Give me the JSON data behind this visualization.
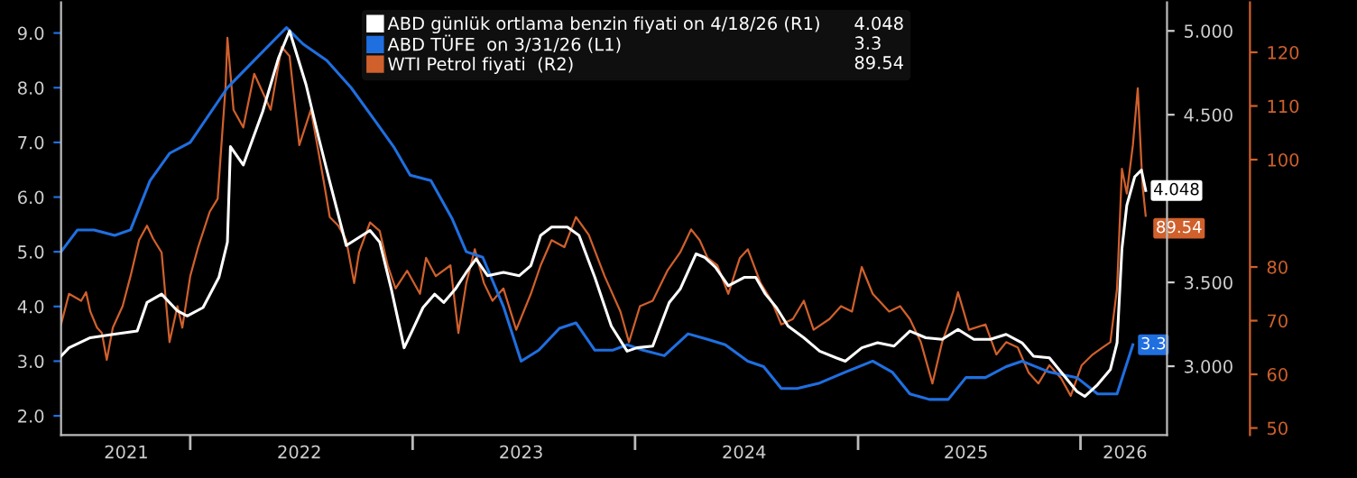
{
  "chart_data": {
    "type": "line",
    "legend": "top",
    "grid": false,
    "xlim": [
      "2021-06-03",
      "2026-05-23"
    ],
    "xticks": [
      {
        "value": "2022-01-01",
        "label": null
      },
      {
        "value": "2023-01-01",
        "label": null
      },
      {
        "value": "2024-01-01",
        "label": null
      },
      {
        "value": "2025-01-01",
        "label": null
      },
      {
        "value": "2026-01-01",
        "label": null
      },
      {
        "value": "2021-09-18",
        "label": "2021"
      },
      {
        "value": "2022-06-29",
        "label": "2022"
      },
      {
        "value": "2023-06-28",
        "label": "2023"
      },
      {
        "value": "2024-06-28",
        "label": "2024"
      },
      {
        "value": "2025-06-27",
        "label": "2025"
      },
      {
        "value": "2026-03-15",
        "label": "2026"
      }
    ],
    "ylim": [
      1.65,
      9.56
    ],
    "yticks": [
      {
        "value": 2,
        "label": "2.0"
      },
      {
        "value": 3,
        "label": "3.0"
      },
      {
        "value": 4,
        "label": "4.0"
      },
      {
        "value": 5,
        "label": "5.0"
      },
      {
        "value": 6,
        "label": "6.0"
      },
      {
        "value": 7,
        "label": "7.0"
      },
      {
        "value": 8,
        "label": "8.0"
      },
      {
        "value": 9,
        "label": "9.0"
      }
    ],
    "y2lim": [
      2.59,
      5.17
    ],
    "y2ticks": [
      {
        "value": 3,
        "label": "3.000"
      },
      {
        "value": 3.5,
        "label": "3.500"
      },
      {
        "value": 4,
        "label": null
      },
      {
        "value": 4.5,
        "label": "4.500"
      },
      {
        "value": 5,
        "label": "5.000"
      }
    ],
    "y3lim": [
      48.7,
      129.3
    ],
    "y3ticks": [
      50,
      60,
      70,
      80,
      100,
      110,
      120
    ],
    "series": [
      {
        "name": "ABD günlük ortlama benzin fiyati on 4/18/26 (R1)",
        "color": "#ffffff",
        "axis": "y2",
        "x": [
          "2021-06-03",
          "2021-06-16",
          "2021-07-21",
          "2021-08-27",
          "2021-10-06",
          "2021-10-22",
          "2021-11-15",
          "2021-12-11",
          "2021-12-27",
          "2022-01-22",
          "2022-02-17",
          "2022-03-03",
          "2022-03-08",
          "2022-03-29",
          "2022-04-30",
          "2022-05-26",
          "2022-06-13",
          "2022-07-10",
          "2022-07-31",
          "2022-08-18",
          "2022-09-14",
          "2022-10-23",
          "2022-11-08",
          "2022-11-27",
          "2022-12-18",
          "2022-12-31",
          "2023-01-18",
          "2023-02-06",
          "2023-02-21",
          "2023-03-12",
          "2023-03-30",
          "2023-04-15",
          "2023-05-04",
          "2023-05-30",
          "2023-06-25",
          "2023-07-14",
          "2023-07-30",
          "2023-08-17",
          "2023-09-12",
          "2023-10-01",
          "2023-10-27",
          "2023-11-23",
          "2023-12-19",
          "2024-01-04",
          "2024-01-30",
          "2024-02-26",
          "2024-03-15",
          "2024-04-10",
          "2024-04-24",
          "2024-05-12",
          "2024-06-02",
          "2024-06-28",
          "2024-07-17",
          "2024-08-02",
          "2024-08-20",
          "2024-09-08",
          "2024-10-04",
          "2024-10-30",
          "2024-11-26",
          "2024-12-11",
          "2025-01-07",
          "2025-02-02",
          "2025-03-01",
          "2025-03-27",
          "2025-04-22",
          "2025-05-19",
          "2025-06-14",
          "2025-07-10",
          "2025-08-06",
          "2025-09-01",
          "2025-09-27",
          "2025-10-16",
          "2025-11-11",
          "2025-12-08",
          "2025-12-26",
          "2026-01-08",
          "2026-01-29",
          "2026-02-19",
          "2026-03-02",
          "2026-03-10",
          "2026-03-18",
          "2026-03-31",
          "2026-04-11",
          "2026-04-18"
        ],
        "values": [
          3.06,
          3.11,
          3.17,
          3.19,
          3.21,
          3.38,
          3.43,
          3.33,
          3.3,
          3.35,
          3.53,
          3.74,
          4.31,
          4.2,
          4.52,
          4.84,
          5.0,
          4.68,
          4.36,
          4.1,
          3.72,
          3.81,
          3.74,
          3.46,
          3.11,
          3.21,
          3.35,
          3.43,
          3.38,
          3.46,
          3.56,
          3.64,
          3.54,
          3.56,
          3.54,
          3.6,
          3.78,
          3.83,
          3.83,
          3.78,
          3.53,
          3.24,
          3.09,
          3.11,
          3.12,
          3.38,
          3.46,
          3.67,
          3.65,
          3.59,
          3.48,
          3.53,
          3.53,
          3.43,
          3.35,
          3.24,
          3.17,
          3.09,
          3.05,
          3.03,
          3.11,
          3.14,
          3.12,
          3.21,
          3.17,
          3.16,
          3.22,
          3.16,
          3.16,
          3.19,
          3.14,
          3.06,
          3.05,
          2.93,
          2.85,
          2.82,
          2.89,
          2.98,
          3.14,
          3.7,
          3.96,
          4.13,
          4.17,
          4.048
        ],
        "value_labels": [
          null,
          null,
          null,
          null,
          null,
          null,
          null,
          null,
          null,
          null,
          null,
          null,
          null,
          null,
          null,
          null,
          null,
          null,
          null,
          null,
          null,
          null,
          null,
          null,
          null,
          null,
          null,
          null,
          null,
          null,
          null,
          null,
          null,
          null,
          null,
          null,
          null,
          null,
          null,
          null,
          null,
          null,
          null,
          null,
          null,
          null,
          null,
          null,
          null,
          null,
          null,
          null,
          null,
          null,
          null,
          null,
          null,
          null,
          null,
          null,
          null,
          null,
          null,
          null,
          null,
          null,
          null,
          null,
          null,
          null,
          null,
          null,
          null,
          null,
          null,
          null,
          null,
          null,
          null,
          null,
          null,
          null,
          null,
          "4.048"
        ]
      },
      {
        "name": "ABD TÜFE  on 3/31/26 (L1)",
        "color": "#1f6fe0",
        "axis": "y",
        "x": [
          "2021-06-03",
          "2021-06-30",
          "2021-07-27",
          "2021-08-30",
          "2021-09-25",
          "2021-10-27",
          "2021-11-28",
          "2022-01-01",
          "2022-03-03",
          "2022-04-16",
          "2022-06-08",
          "2022-07-05",
          "2022-08-13",
          "2022-09-22",
          "2022-10-31",
          "2022-12-02",
          "2022-12-28",
          "2023-01-31",
          "2023-03-07",
          "2023-03-30",
          "2023-04-26",
          "2023-05-30",
          "2023-06-28",
          "2023-07-27",
          "2023-08-30",
          "2023-09-26",
          "2023-10-27",
          "2023-11-25",
          "2023-12-19",
          "2024-01-14",
          "2024-02-18",
          "2024-03-28",
          "2024-04-29",
          "2024-05-28",
          "2024-07-04",
          "2024-07-30",
          "2024-08-28",
          "2024-09-23",
          "2024-10-30",
          "2024-12-11",
          "2025-01-25",
          "2025-02-26",
          "2025-03-27",
          "2025-04-28",
          "2025-05-29",
          "2025-06-27",
          "2025-07-29",
          "2025-09-01",
          "2025-09-27",
          "2025-11-11",
          "2025-12-26",
          "2026-01-29",
          "2026-03-02",
          "2026-03-28"
        ],
        "values": [
          5.0,
          5.4,
          5.4,
          5.3,
          5.4,
          6.3,
          6.8,
          7.0,
          8.0,
          8.5,
          9.1,
          8.8,
          8.5,
          8.0,
          7.4,
          6.9,
          6.4,
          6.3,
          5.6,
          5.0,
          4.9,
          4.0,
          3.0,
          3.2,
          3.6,
          3.7,
          3.2,
          3.2,
          3.3,
          3.2,
          3.1,
          3.5,
          3.4,
          3.3,
          3.0,
          2.9,
          2.5,
          2.5,
          2.6,
          2.8,
          3.0,
          2.8,
          2.4,
          2.3,
          2.3,
          2.7,
          2.7,
          2.9,
          3.0,
          2.8,
          2.7,
          2.4,
          2.4,
          3.3
        ],
        "value_labels": [
          null,
          null,
          null,
          null,
          null,
          null,
          null,
          null,
          null,
          null,
          null,
          null,
          null,
          null,
          null,
          null,
          null,
          null,
          null,
          null,
          null,
          null,
          null,
          null,
          null,
          null,
          null,
          null,
          null,
          null,
          null,
          null,
          null,
          null,
          null,
          null,
          null,
          null,
          null,
          null,
          null,
          null,
          null,
          null,
          null,
          null,
          null,
          null,
          null,
          null,
          null,
          null,
          null,
          "3.3"
        ]
      },
      {
        "name": "WTI Petrol fiyati  (R2)",
        "color": "#d0602c",
        "axis": "y3",
        "x": [
          "2021-06-03",
          "2021-06-16",
          "2021-07-06",
          "2021-07-14",
          "2021-07-21",
          "2021-08-01",
          "2021-08-09",
          "2021-08-17",
          "2021-08-27",
          "2021-09-12",
          "2021-09-25",
          "2021-10-09",
          "2021-10-22",
          "2021-11-01",
          "2021-11-15",
          "2021-11-28",
          "2021-12-11",
          "2021-12-19",
          "2022-01-01",
          "2022-01-14",
          "2022-02-02",
          "2022-02-15",
          "2022-02-17",
          "2022-02-28",
          "2022-03-03",
          "2022-03-13",
          "2022-03-29",
          "2022-04-16",
          "2022-05-13",
          "2022-05-31",
          "2022-06-13",
          "2022-06-29",
          "2022-07-18",
          "2022-08-08",
          "2022-08-18",
          "2022-09-01",
          "2022-09-14",
          "2022-09-27",
          "2022-10-05",
          "2022-10-23",
          "2022-11-08",
          "2022-11-21",
          "2022-12-04",
          "2022-12-23",
          "2023-01-13",
          "2023-01-23",
          "2023-02-08",
          "2023-03-04",
          "2023-03-17",
          "2023-03-30",
          "2023-04-13",
          "2023-04-28",
          "2023-05-12",
          "2023-05-30",
          "2023-06-20",
          "2023-07-14",
          "2023-07-30",
          "2023-08-17",
          "2023-09-07",
          "2023-09-26",
          "2023-10-17",
          "2023-11-12",
          "2023-12-08",
          "2023-12-22",
          "2024-01-09",
          "2024-01-30",
          "2024-02-23",
          "2024-03-15",
          "2024-04-02",
          "2024-04-16",
          "2024-04-29",
          "2024-05-15",
          "2024-06-02",
          "2024-06-21",
          "2024-07-04",
          "2024-07-25",
          "2024-08-12",
          "2024-08-28",
          "2024-09-16",
          "2024-10-04",
          "2024-10-20",
          "2024-11-15",
          "2024-12-04",
          "2024-12-22",
          "2025-01-07",
          "2025-01-25",
          "2025-02-21",
          "2025-03-11",
          "2025-03-27",
          "2025-04-14",
          "2025-05-03",
          "2025-05-19",
          "2025-06-06",
          "2025-06-14",
          "2025-07-02",
          "2025-07-29",
          "2025-08-16",
          "2025-09-01",
          "2025-09-20",
          "2025-10-08",
          "2025-10-24",
          "2025-11-11",
          "2025-11-30",
          "2025-12-16",
          "2026-01-03",
          "2026-01-21",
          "2026-02-06",
          "2026-02-19",
          "2026-03-02",
          "2026-03-10",
          "2026-03-18",
          "2026-03-28",
          "2026-04-05",
          "2026-04-11",
          "2026-04-13",
          "2026-04-18"
        ],
        "values": [
          69.3,
          75.0,
          73.7,
          75.3,
          71.7,
          68.7,
          67.7,
          62.7,
          68.7,
          72.7,
          78.3,
          85.0,
          87.7,
          85.3,
          82.7,
          66.0,
          72.7,
          68.7,
          78.3,
          83.7,
          90.3,
          92.7,
          96.0,
          113.7,
          122.7,
          109.3,
          106.0,
          116.0,
          109.3,
          121.0,
          119.3,
          102.7,
          109.3,
          96.0,
          89.3,
          87.7,
          85.0,
          77.0,
          82.7,
          88.3,
          86.7,
          80.3,
          76.0,
          79.3,
          75.0,
          81.7,
          78.3,
          80.3,
          67.7,
          77.0,
          83.3,
          77.0,
          73.7,
          76.0,
          68.3,
          75.0,
          80.3,
          85.0,
          83.7,
          89.3,
          86.0,
          78.3,
          71.7,
          66.0,
          72.7,
          73.7,
          79.3,
          82.7,
          87.0,
          85.0,
          81.7,
          80.3,
          75.0,
          81.7,
          83.3,
          77.0,
          73.7,
          69.3,
          70.3,
          73.7,
          68.3,
          70.3,
          72.7,
          71.7,
          80.0,
          75.0,
          71.7,
          72.7,
          70.3,
          66.0,
          58.3,
          66.0,
          71.7,
          75.3,
          68.3,
          69.3,
          63.7,
          66.0,
          65.0,
          60.3,
          58.3,
          61.7,
          59.3,
          56.0,
          61.7,
          63.7,
          65.0,
          66.0,
          76.0,
          98.3,
          93.7,
          102.7,
          113.3,
          99.3,
          95.0,
          89.54
        ],
        "value_labels": [
          null,
          null,
          null,
          null,
          null,
          null,
          null,
          null,
          null,
          null,
          null,
          null,
          null,
          null,
          null,
          null,
          null,
          null,
          null,
          null,
          null,
          null,
          null,
          null,
          null,
          null,
          null,
          null,
          null,
          null,
          null,
          null,
          null,
          null,
          null,
          null,
          null,
          null,
          null,
          null,
          null,
          null,
          null,
          null,
          null,
          null,
          null,
          null,
          null,
          null,
          null,
          null,
          null,
          null,
          null,
          null,
          null,
          null,
          null,
          null,
          null,
          null,
          null,
          null,
          null,
          null,
          null,
          null,
          null,
          null,
          null,
          null,
          null,
          null,
          null,
          null,
          null,
          null,
          null,
          null,
          null,
          null,
          null,
          null,
          null,
          null,
          null,
          null,
          null,
          null,
          null,
          null,
          null,
          null,
          null,
          null,
          null,
          null,
          null,
          null,
          null,
          null,
          null,
          null,
          null,
          null,
          null,
          null,
          null,
          null,
          null,
          null,
          null,
          null,
          null,
          "89.54"
        ]
      }
    ]
  }
}
